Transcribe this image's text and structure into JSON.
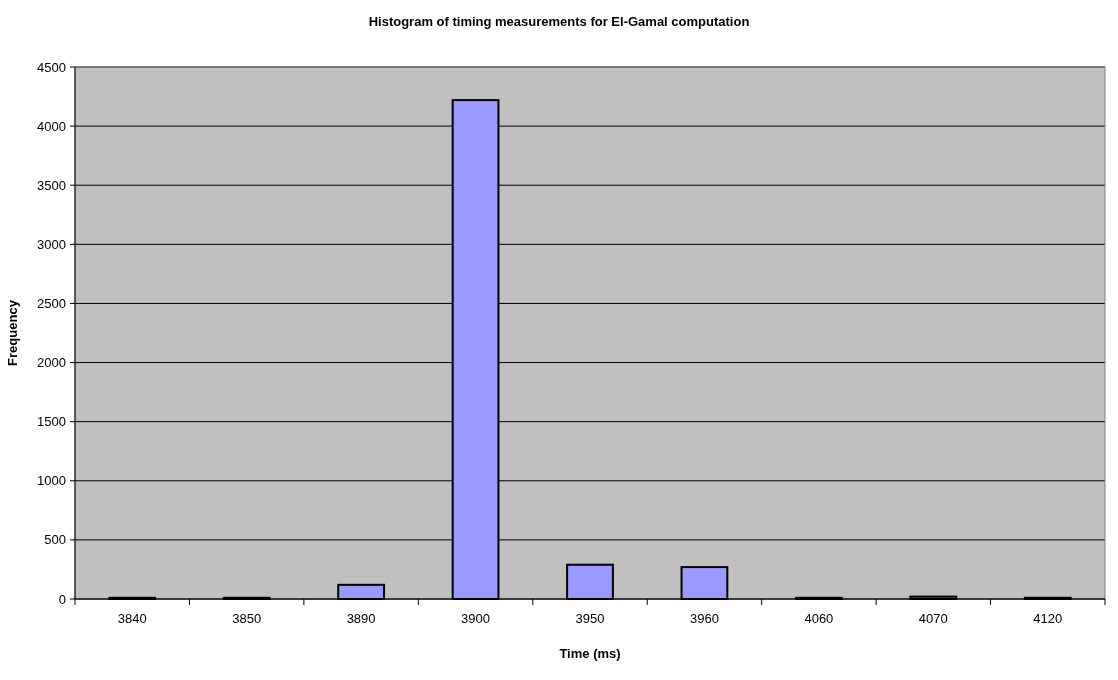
{
  "chart_data": {
    "type": "bar",
    "title": "Histogram of timing measurements for El-Gamal computation",
    "xlabel": "Time (ms)",
    "ylabel": "Frequency",
    "categories": [
      "3840",
      "3850",
      "3890",
      "3900",
      "3950",
      "3960",
      "4060",
      "4070",
      "4120"
    ],
    "values": [
      10,
      10,
      120,
      4220,
      290,
      270,
      10,
      20,
      10
    ],
    "color": "#9999ff",
    "ylim": [
      0,
      4500
    ],
    "yticks": [
      0,
      500,
      1000,
      1500,
      2000,
      2500,
      3000,
      3500,
      4000,
      4500
    ],
    "grid": "y"
  }
}
